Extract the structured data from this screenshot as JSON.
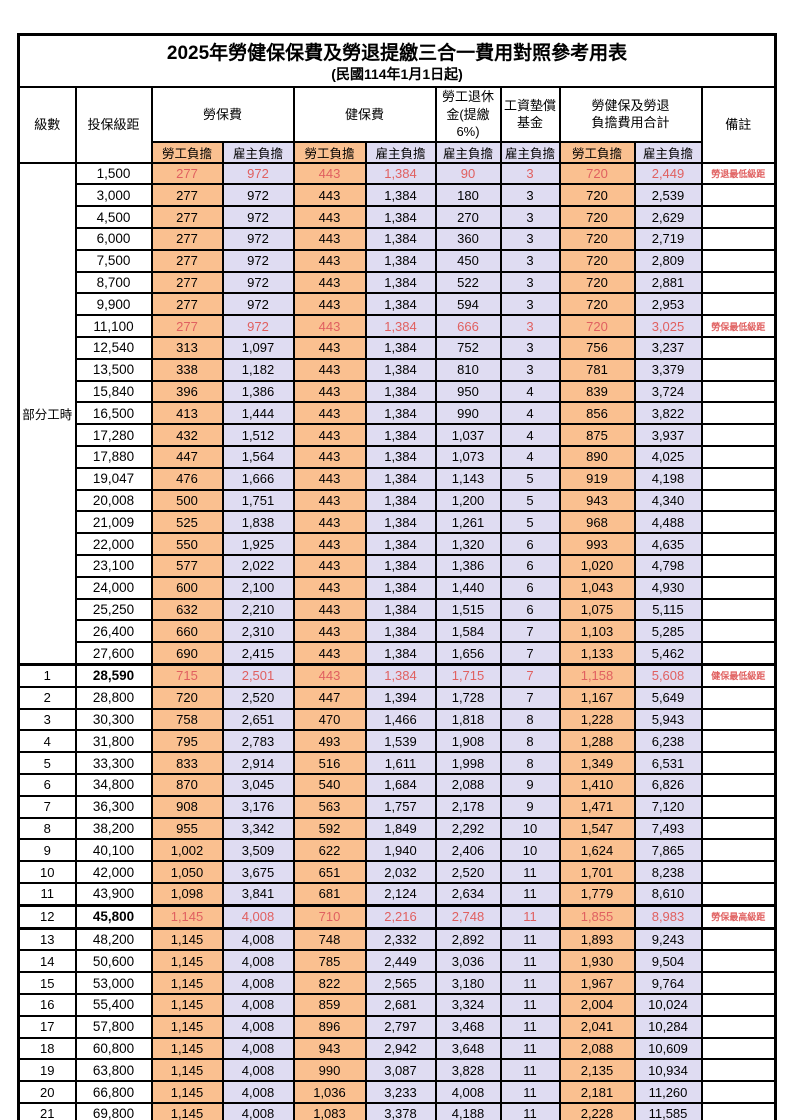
{
  "title": "2025年勞健保保費及勞退提繳三合一費用對照參考用表",
  "subtitle": "(民國114年1月1日起)",
  "colors": {
    "employee_col_bg": "#FAC090",
    "employer_col_bg": "#DFDCF2",
    "highlight_text": "#E06060",
    "grid": "#000000"
  },
  "header": {
    "level": "級數",
    "bracket": "投保級距",
    "labor_insurance": "勞保費",
    "health_insurance": "健保費",
    "pension": "勞工退休\n金(提繳6%)",
    "wage_fund": "工資墊償\n基金",
    "total": "勞健保及勞退\n負擔費用合計",
    "remark": "備註",
    "employee": "勞工負擔",
    "employer": "雇主負擔"
  },
  "part_time_label": "部分工時",
  "rows": [
    {
      "level": null,
      "bracket": "1,500",
      "v": [
        "277",
        "972",
        "443",
        "1,384",
        "90",
        "3",
        "720",
        "2,449"
      ],
      "remark": "勞退最低級距",
      "red": true,
      "bold": false,
      "heavy": false
    },
    {
      "level": null,
      "bracket": "3,000",
      "v": [
        "277",
        "972",
        "443",
        "1,384",
        "180",
        "3",
        "720",
        "2,539"
      ],
      "remark": "",
      "red": false,
      "bold": false,
      "heavy": false
    },
    {
      "level": null,
      "bracket": "4,500",
      "v": [
        "277",
        "972",
        "443",
        "1,384",
        "270",
        "3",
        "720",
        "2,629"
      ],
      "remark": "",
      "red": false,
      "bold": false,
      "heavy": false
    },
    {
      "level": null,
      "bracket": "6,000",
      "v": [
        "277",
        "972",
        "443",
        "1,384",
        "360",
        "3",
        "720",
        "2,719"
      ],
      "remark": "",
      "red": false,
      "bold": false,
      "heavy": false
    },
    {
      "level": null,
      "bracket": "7,500",
      "v": [
        "277",
        "972",
        "443",
        "1,384",
        "450",
        "3",
        "720",
        "2,809"
      ],
      "remark": "",
      "red": false,
      "bold": false,
      "heavy": false
    },
    {
      "level": null,
      "bracket": "8,700",
      "v": [
        "277",
        "972",
        "443",
        "1,384",
        "522",
        "3",
        "720",
        "2,881"
      ],
      "remark": "",
      "red": false,
      "bold": false,
      "heavy": false
    },
    {
      "level": null,
      "bracket": "9,900",
      "v": [
        "277",
        "972",
        "443",
        "1,384",
        "594",
        "3",
        "720",
        "2,953"
      ],
      "remark": "",
      "red": false,
      "bold": false,
      "heavy": false
    },
    {
      "level": null,
      "bracket": "11,100",
      "v": [
        "277",
        "972",
        "443",
        "1,384",
        "666",
        "3",
        "720",
        "3,025"
      ],
      "remark": "勞保最低級距",
      "red": true,
      "bold": false,
      "heavy": false
    },
    {
      "level": null,
      "bracket": "12,540",
      "v": [
        "313",
        "1,097",
        "443",
        "1,384",
        "752",
        "3",
        "756",
        "3,237"
      ],
      "remark": "",
      "red": false,
      "bold": false,
      "heavy": false
    },
    {
      "level": null,
      "bracket": "13,500",
      "v": [
        "338",
        "1,182",
        "443",
        "1,384",
        "810",
        "3",
        "781",
        "3,379"
      ],
      "remark": "",
      "red": false,
      "bold": false,
      "heavy": false
    },
    {
      "level": null,
      "bracket": "15,840",
      "v": [
        "396",
        "1,386",
        "443",
        "1,384",
        "950",
        "4",
        "839",
        "3,724"
      ],
      "remark": "",
      "red": false,
      "bold": false,
      "heavy": false
    },
    {
      "level": null,
      "bracket": "16,500",
      "v": [
        "413",
        "1,444",
        "443",
        "1,384",
        "990",
        "4",
        "856",
        "3,822"
      ],
      "remark": "",
      "red": false,
      "bold": false,
      "heavy": false
    },
    {
      "level": null,
      "bracket": "17,280",
      "v": [
        "432",
        "1,512",
        "443",
        "1,384",
        "1,037",
        "4",
        "875",
        "3,937"
      ],
      "remark": "",
      "red": false,
      "bold": false,
      "heavy": false
    },
    {
      "level": null,
      "bracket": "17,880",
      "v": [
        "447",
        "1,564",
        "443",
        "1,384",
        "1,073",
        "4",
        "890",
        "4,025"
      ],
      "remark": "",
      "red": false,
      "bold": false,
      "heavy": false
    },
    {
      "level": null,
      "bracket": "19,047",
      "v": [
        "476",
        "1,666",
        "443",
        "1,384",
        "1,143",
        "5",
        "919",
        "4,198"
      ],
      "remark": "",
      "red": false,
      "bold": false,
      "heavy": false
    },
    {
      "level": null,
      "bracket": "20,008",
      "v": [
        "500",
        "1,751",
        "443",
        "1,384",
        "1,200",
        "5",
        "943",
        "4,340"
      ],
      "remark": "",
      "red": false,
      "bold": false,
      "heavy": false
    },
    {
      "level": null,
      "bracket": "21,009",
      "v": [
        "525",
        "1,838",
        "443",
        "1,384",
        "1,261",
        "5",
        "968",
        "4,488"
      ],
      "remark": "",
      "red": false,
      "bold": false,
      "heavy": false
    },
    {
      "level": null,
      "bracket": "22,000",
      "v": [
        "550",
        "1,925",
        "443",
        "1,384",
        "1,320",
        "6",
        "993",
        "4,635"
      ],
      "remark": "",
      "red": false,
      "bold": false,
      "heavy": false
    },
    {
      "level": null,
      "bracket": "23,100",
      "v": [
        "577",
        "2,022",
        "443",
        "1,384",
        "1,386",
        "6",
        "1,020",
        "4,798"
      ],
      "remark": "",
      "red": false,
      "bold": false,
      "heavy": false
    },
    {
      "level": null,
      "bracket": "24,000",
      "v": [
        "600",
        "2,100",
        "443",
        "1,384",
        "1,440",
        "6",
        "1,043",
        "4,930"
      ],
      "remark": "",
      "red": false,
      "bold": false,
      "heavy": false
    },
    {
      "level": null,
      "bracket": "25,250",
      "v": [
        "632",
        "2,210",
        "443",
        "1,384",
        "1,515",
        "6",
        "1,075",
        "5,115"
      ],
      "remark": "",
      "red": false,
      "bold": false,
      "heavy": false
    },
    {
      "level": null,
      "bracket": "26,400",
      "v": [
        "660",
        "2,310",
        "443",
        "1,384",
        "1,584",
        "7",
        "1,103",
        "5,285"
      ],
      "remark": "",
      "red": false,
      "bold": false,
      "heavy": false
    },
    {
      "level": null,
      "bracket": "27,600",
      "v": [
        "690",
        "2,415",
        "443",
        "1,384",
        "1,656",
        "7",
        "1,133",
        "5,462"
      ],
      "remark": "",
      "red": false,
      "bold": false,
      "heavy": false
    },
    {
      "level": "1",
      "bracket": "28,590",
      "v": [
        "715",
        "2,501",
        "443",
        "1,384",
        "1,715",
        "7",
        "1,158",
        "5,608"
      ],
      "remark": "健保最低級距",
      "red": true,
      "bold": true,
      "heavy": true
    },
    {
      "level": "2",
      "bracket": "28,800",
      "v": [
        "720",
        "2,520",
        "447",
        "1,394",
        "1,728",
        "7",
        "1,167",
        "5,649"
      ],
      "remark": "",
      "red": false,
      "bold": false,
      "heavy": false
    },
    {
      "level": "3",
      "bracket": "30,300",
      "v": [
        "758",
        "2,651",
        "470",
        "1,466",
        "1,818",
        "8",
        "1,228",
        "5,943"
      ],
      "remark": "",
      "red": false,
      "bold": false,
      "heavy": false
    },
    {
      "level": "4",
      "bracket": "31,800",
      "v": [
        "795",
        "2,783",
        "493",
        "1,539",
        "1,908",
        "8",
        "1,288",
        "6,238"
      ],
      "remark": "",
      "red": false,
      "bold": false,
      "heavy": false
    },
    {
      "level": "5",
      "bracket": "33,300",
      "v": [
        "833",
        "2,914",
        "516",
        "1,611",
        "1,998",
        "8",
        "1,349",
        "6,531"
      ],
      "remark": "",
      "red": false,
      "bold": false,
      "heavy": false
    },
    {
      "level": "6",
      "bracket": "34,800",
      "v": [
        "870",
        "3,045",
        "540",
        "1,684",
        "2,088",
        "9",
        "1,410",
        "6,826"
      ],
      "remark": "",
      "red": false,
      "bold": false,
      "heavy": false
    },
    {
      "level": "7",
      "bracket": "36,300",
      "v": [
        "908",
        "3,176",
        "563",
        "1,757",
        "2,178",
        "9",
        "1,471",
        "7,120"
      ],
      "remark": "",
      "red": false,
      "bold": false,
      "heavy": false
    },
    {
      "level": "8",
      "bracket": "38,200",
      "v": [
        "955",
        "3,342",
        "592",
        "1,849",
        "2,292",
        "10",
        "1,547",
        "7,493"
      ],
      "remark": "",
      "red": false,
      "bold": false,
      "heavy": false
    },
    {
      "level": "9",
      "bracket": "40,100",
      "v": [
        "1,002",
        "3,509",
        "622",
        "1,940",
        "2,406",
        "10",
        "1,624",
        "7,865"
      ],
      "remark": "",
      "red": false,
      "bold": false,
      "heavy": false
    },
    {
      "level": "10",
      "bracket": "42,000",
      "v": [
        "1,050",
        "3,675",
        "651",
        "2,032",
        "2,520",
        "11",
        "1,701",
        "8,238"
      ],
      "remark": "",
      "red": false,
      "bold": false,
      "heavy": false
    },
    {
      "level": "11",
      "bracket": "43,900",
      "v": [
        "1,098",
        "3,841",
        "681",
        "2,124",
        "2,634",
        "11",
        "1,779",
        "8,610"
      ],
      "remark": "",
      "red": false,
      "bold": false,
      "heavy": false
    },
    {
      "level": "12",
      "bracket": "45,800",
      "v": [
        "1,145",
        "4,008",
        "710",
        "2,216",
        "2,748",
        "11",
        "1,855",
        "8,983"
      ],
      "remark": "勞保最高級距",
      "red": true,
      "bold": true,
      "heavy": true
    },
    {
      "level": "13",
      "bracket": "48,200",
      "v": [
        "1,145",
        "4,008",
        "748",
        "2,332",
        "2,892",
        "11",
        "1,893",
        "9,243"
      ],
      "remark": "",
      "red": false,
      "bold": false,
      "heavy": true
    },
    {
      "level": "14",
      "bracket": "50,600",
      "v": [
        "1,145",
        "4,008",
        "785",
        "2,449",
        "3,036",
        "11",
        "1,930",
        "9,504"
      ],
      "remark": "",
      "red": false,
      "bold": false,
      "heavy": false
    },
    {
      "level": "15",
      "bracket": "53,000",
      "v": [
        "1,145",
        "4,008",
        "822",
        "2,565",
        "3,180",
        "11",
        "1,967",
        "9,764"
      ],
      "remark": "",
      "red": false,
      "bold": false,
      "heavy": false
    },
    {
      "level": "16",
      "bracket": "55,400",
      "v": [
        "1,145",
        "4,008",
        "859",
        "2,681",
        "3,324",
        "11",
        "2,004",
        "10,024"
      ],
      "remark": "",
      "red": false,
      "bold": false,
      "heavy": false
    },
    {
      "level": "17",
      "bracket": "57,800",
      "v": [
        "1,145",
        "4,008",
        "896",
        "2,797",
        "3,468",
        "11",
        "2,041",
        "10,284"
      ],
      "remark": "",
      "red": false,
      "bold": false,
      "heavy": false
    },
    {
      "level": "18",
      "bracket": "60,800",
      "v": [
        "1,145",
        "4,008",
        "943",
        "2,942",
        "3,648",
        "11",
        "2,088",
        "10,609"
      ],
      "remark": "",
      "red": false,
      "bold": false,
      "heavy": false
    },
    {
      "level": "19",
      "bracket": "63,800",
      "v": [
        "1,145",
        "4,008",
        "990",
        "3,087",
        "3,828",
        "11",
        "2,135",
        "10,934"
      ],
      "remark": "",
      "red": false,
      "bold": false,
      "heavy": false
    },
    {
      "level": "20",
      "bracket": "66,800",
      "v": [
        "1,145",
        "4,008",
        "1,036",
        "3,233",
        "4,008",
        "11",
        "2,181",
        "11,260"
      ],
      "remark": "",
      "red": false,
      "bold": false,
      "heavy": false
    },
    {
      "level": "21",
      "bracket": "69,800",
      "v": [
        "1,145",
        "4,008",
        "1,083",
        "3,378",
        "4,188",
        "11",
        "2,228",
        "11,585"
      ],
      "remark": "",
      "red": false,
      "bold": false,
      "heavy": false
    }
  ]
}
